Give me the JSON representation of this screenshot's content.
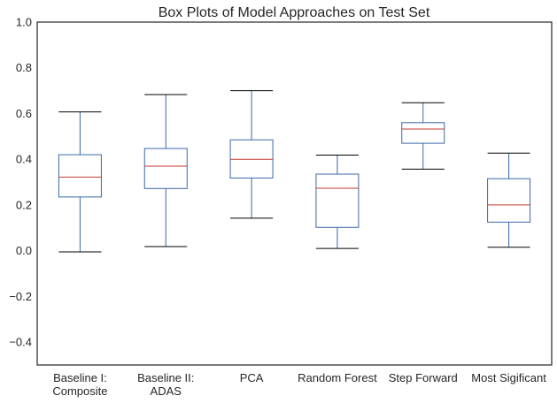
{
  "chart_data": {
    "type": "box",
    "title": "Box Plots of Model Approaches on Test Set",
    "xlabel": "",
    "ylabel": "",
    "ylim": [
      -0.5,
      1.0
    ],
    "yticks": [
      -0.4,
      -0.2,
      0.0,
      0.2,
      0.4,
      0.6,
      0.8,
      1.0
    ],
    "ytick_labels": [
      "−0.4",
      "−0.2",
      "0.0",
      "0.2",
      "0.4",
      "0.6",
      "0.8",
      "1.0"
    ],
    "grid": false,
    "categories": [
      [
        "Baseline I:",
        "Composite"
      ],
      [
        "Baseline II:",
        "ADAS"
      ],
      [
        "PCA"
      ],
      [
        "Random Forest"
      ],
      [
        "Step Forward"
      ],
      [
        "Most Sigificant"
      ]
    ],
    "boxes": [
      {
        "whisker_low": -0.005,
        "q1": 0.235,
        "median": 0.322,
        "q3": 0.42,
        "whisker_high": 0.607
      },
      {
        "whisker_low": 0.018,
        "q1": 0.272,
        "median": 0.37,
        "q3": 0.447,
        "whisker_high": 0.683
      },
      {
        "whisker_low": 0.142,
        "q1": 0.318,
        "median": 0.4,
        "q3": 0.485,
        "whisker_high": 0.7
      },
      {
        "whisker_low": 0.01,
        "q1": 0.102,
        "median": 0.273,
        "q3": 0.335,
        "whisker_high": 0.418
      },
      {
        "whisker_low": 0.357,
        "q1": 0.47,
        "median": 0.532,
        "q3": 0.56,
        "whisker_high": 0.647
      },
      {
        "whisker_low": 0.015,
        "q1": 0.125,
        "median": 0.2,
        "q3": 0.315,
        "whisker_high": 0.427
      }
    ],
    "colors": {
      "box": "#3a68a8",
      "median": "#c0392b",
      "cap": "#000000",
      "frame": "#262626"
    }
  }
}
